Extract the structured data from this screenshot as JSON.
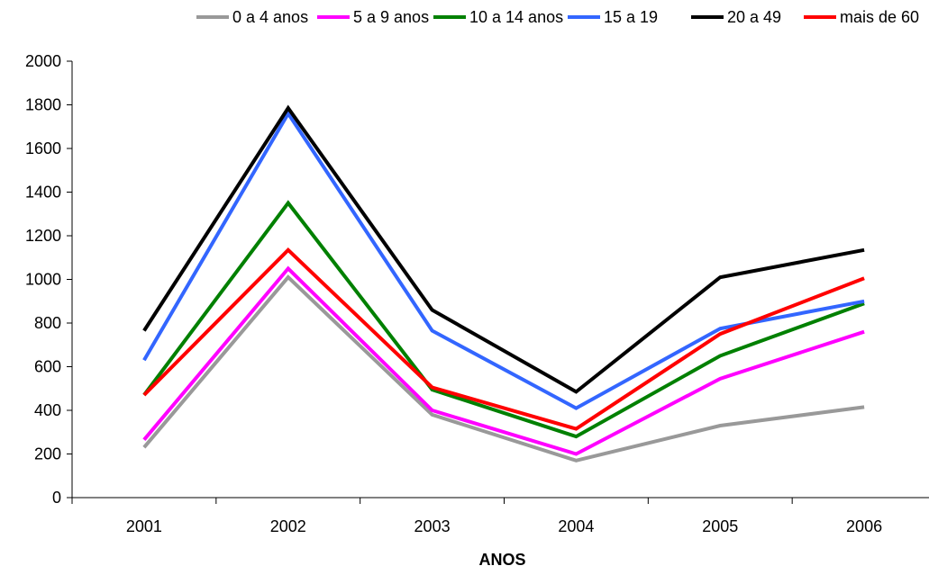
{
  "chart_data": {
    "type": "line",
    "title": "",
    "xlabel": "ANOS",
    "ylabel": "",
    "categories": [
      "2001",
      "2002",
      "2003",
      "2004",
      "2005",
      "2006"
    ],
    "ylim": [
      0,
      2000
    ],
    "yticks": [
      0,
      200,
      400,
      600,
      800,
      1000,
      1200,
      1400,
      1600,
      1800,
      2000
    ],
    "grid": false,
    "legend_position": "top",
    "series": [
      {
        "name": "0 a 4 anos",
        "color": "#999999",
        "values": [
          230,
          1010,
          380,
          170,
          330,
          415
        ]
      },
      {
        "name": "5 a 9 anos",
        "color": "#ff00ff",
        "values": [
          265,
          1050,
          400,
          200,
          545,
          760
        ]
      },
      {
        "name": "10 a 14 anos",
        "color": "#008000",
        "values": [
          470,
          1350,
          495,
          280,
          650,
          890
        ]
      },
      {
        "name": "15 a 19",
        "color": "#3366ff",
        "values": [
          630,
          1760,
          765,
          410,
          775,
          900
        ]
      },
      {
        "name": "20 a 49",
        "color": "#000000",
        "values": [
          765,
          1785,
          860,
          485,
          1010,
          1135
        ]
      },
      {
        "name": "mais de 60",
        "color": "#ff0000",
        "values": [
          470,
          1135,
          505,
          315,
          750,
          1005
        ]
      }
    ]
  }
}
